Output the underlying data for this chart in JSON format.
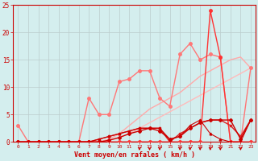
{
  "xlabel": "Vent moyen/en rafales ( km/h )",
  "lines": [
    {
      "y": [
        0,
        0,
        0,
        0,
        0,
        0,
        0,
        0,
        0,
        0.5,
        1.5,
        3,
        4.5,
        6,
        7,
        8,
        9,
        10.5,
        12,
        13,
        14,
        15,
        15.5,
        13.5
      ],
      "color": "#ffaaaa",
      "marker": "none",
      "markersize": 0,
      "linewidth": 1.0,
      "alpha": 1.0,
      "zorder": 1
    },
    {
      "y": [
        0,
        0,
        0,
        0,
        0,
        0,
        0,
        0,
        0,
        0.3,
        0.8,
        1.5,
        2.5,
        3.5,
        4.5,
        5.5,
        6.5,
        7.5,
        8.5,
        9.5,
        10.5,
        11.5,
        12.5,
        13.5
      ],
      "color": "#ffbbbb",
      "marker": "none",
      "markersize": 0,
      "linewidth": 1.0,
      "alpha": 1.0,
      "zorder": 1
    },
    {
      "y": [
        3,
        0,
        0,
        0,
        0,
        0,
        0,
        8,
        5,
        5,
        11,
        11.5,
        13,
        13,
        8,
        6.5,
        16,
        18,
        15,
        16,
        15.5,
        0,
        0,
        13.5
      ],
      "color": "#ff7777",
      "marker": "o",
      "markersize": 2.5,
      "linewidth": 1.0,
      "alpha": 1.0,
      "zorder": 3
    },
    {
      "y": [
        0,
        0,
        0,
        0,
        0,
        0,
        0,
        0,
        0.5,
        1,
        1.5,
        2,
        2.5,
        2.5,
        2.5,
        0,
        1.5,
        2.5,
        3.5,
        4,
        4,
        3,
        1,
        4
      ],
      "color": "#dd2222",
      "marker": "s",
      "markersize": 2,
      "linewidth": 1.0,
      "alpha": 1.0,
      "zorder": 4
    },
    {
      "y": [
        0,
        0,
        0,
        0,
        0,
        0,
        0,
        0,
        0,
        0.3,
        0.8,
        1.5,
        2,
        2.5,
        2,
        0.5,
        1,
        2.5,
        3.5,
        4,
        4,
        4,
        0.5,
        4
      ],
      "color": "#cc0000",
      "marker": "D",
      "markersize": 2,
      "linewidth": 1.0,
      "alpha": 1.0,
      "zorder": 5
    },
    {
      "y": [
        0,
        0,
        0,
        0,
        0,
        0,
        0,
        0,
        0.5,
        1,
        1.5,
        2,
        2.5,
        2.5,
        2.5,
        0.5,
        1,
        3,
        4,
        1.5,
        0.5,
        0,
        0,
        4
      ],
      "color": "#cc0000",
      "marker": "^",
      "markersize": 2,
      "linewidth": 0.8,
      "alpha": 1.0,
      "zorder": 5
    },
    {
      "y": [
        0,
        0,
        0,
        0,
        0,
        0,
        0,
        0,
        0,
        0,
        0,
        0,
        0,
        0,
        0,
        0,
        0,
        0,
        0,
        24,
        15.5,
        0,
        0,
        0
      ],
      "color": "#ff3333",
      "marker": "o",
      "markersize": 2.5,
      "linewidth": 1.0,
      "alpha": 1.0,
      "zorder": 3
    }
  ],
  "arrows_x": [
    12,
    13,
    14,
    16,
    17,
    18,
    19,
    20,
    22
  ],
  "bg_color": "#d4eeee",
  "grid_color": "#bbcccc",
  "ylim": [
    0,
    25
  ],
  "xlim": [
    0,
    23
  ],
  "yticks": [
    0,
    5,
    10,
    15,
    20,
    25
  ],
  "xticks": [
    0,
    1,
    2,
    3,
    4,
    5,
    6,
    7,
    8,
    9,
    10,
    11,
    12,
    13,
    14,
    15,
    16,
    17,
    18,
    19,
    20,
    21,
    22,
    23
  ],
  "tick_color": "#cc0000",
  "label_color": "#cc0000",
  "axis_color": "#cc0000"
}
